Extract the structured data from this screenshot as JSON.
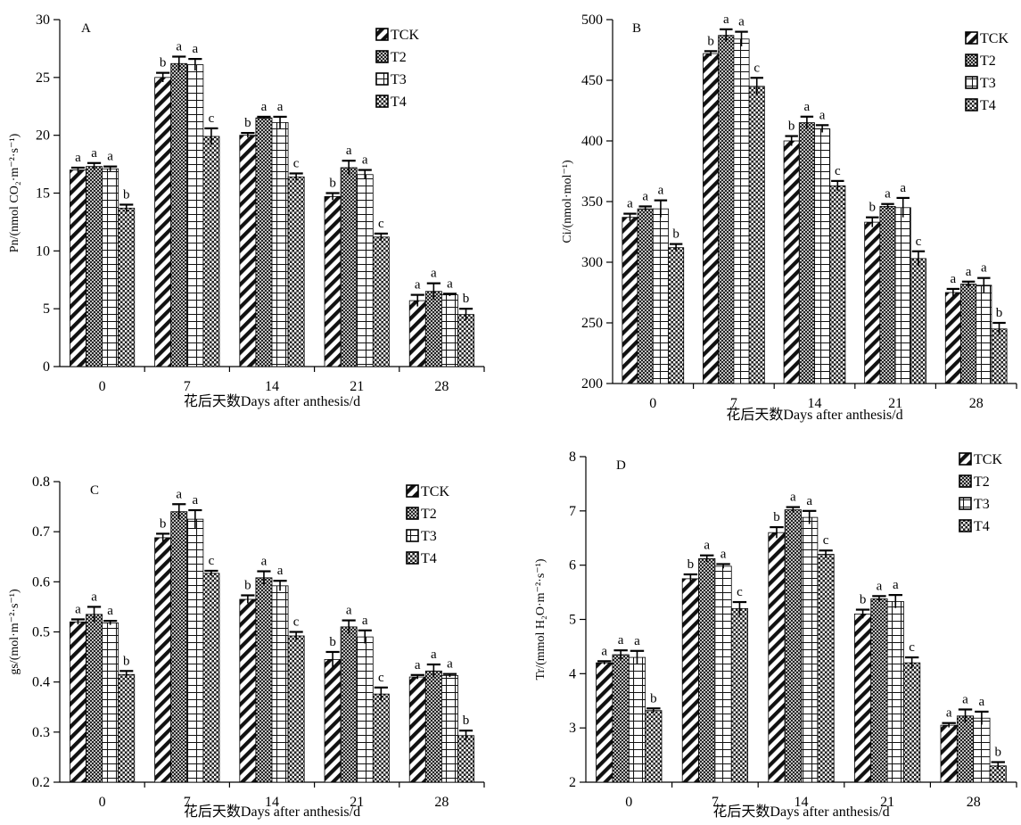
{
  "series_names": [
    "TCK",
    "T2",
    "T3",
    "T4"
  ],
  "chart_data": [
    {
      "type": "bar",
      "panel_letter": "A",
      "ylabel": "Pn/(nmol CO₂·m⁻²·s⁻¹)",
      "xlabel": "花后天数Days after anthesis/d",
      "categories": [
        "0",
        "7",
        "14",
        "21",
        "28"
      ],
      "ylim": [
        0,
        30
      ],
      "yticks": [
        0,
        5,
        10,
        15,
        20,
        25,
        30
      ],
      "legend_position": "top-right",
      "series": [
        {
          "name": "TCK",
          "values": [
            17.0,
            25.0,
            20.0,
            14.7,
            5.7
          ],
          "errors": [
            0.2,
            0.4,
            0.2,
            0.3,
            0.5
          ],
          "letters": [
            "a",
            "b",
            "b",
            "b",
            "a"
          ]
        },
        {
          "name": "T2",
          "values": [
            17.3,
            26.2,
            21.5,
            17.2,
            6.5
          ],
          "errors": [
            0.3,
            0.6,
            0.1,
            0.6,
            0.7
          ],
          "letters": [
            "a",
            "a",
            "a",
            "a",
            "a"
          ]
        },
        {
          "name": "T3",
          "values": [
            17.1,
            26.1,
            21.1,
            16.6,
            6.2
          ],
          "errors": [
            0.2,
            0.5,
            0.5,
            0.4,
            0.1
          ],
          "letters": [
            "a",
            "a",
            "a",
            "a",
            "a"
          ]
        },
        {
          "name": "T4",
          "values": [
            13.7,
            19.9,
            16.4,
            11.2,
            4.5
          ],
          "errors": [
            0.3,
            0.7,
            0.3,
            0.3,
            0.5
          ],
          "letters": [
            "b",
            "c",
            "c",
            "c",
            "b"
          ]
        }
      ]
    },
    {
      "type": "bar",
      "panel_letter": "B",
      "ylabel": "Ci/(nmol·mol⁻¹)",
      "xlabel": "花后天数Days after anthesis/d",
      "categories": [
        "0",
        "7",
        "14",
        "21",
        "28"
      ],
      "ylim": [
        200,
        500
      ],
      "yticks": [
        200,
        250,
        300,
        350,
        400,
        450,
        500
      ],
      "legend_position": "top-right",
      "series": [
        {
          "name": "TCK",
          "values": [
            337,
            472,
            400,
            333,
            275
          ],
          "errors": [
            3,
            2,
            4,
            4,
            3
          ],
          "letters": [
            "a",
            "b",
            "b",
            "b",
            "a"
          ]
        },
        {
          "name": "T2",
          "values": [
            344,
            487,
            415,
            346,
            282
          ],
          "errors": [
            2,
            5,
            5,
            2,
            2
          ],
          "letters": [
            "a",
            "a",
            "a",
            "a",
            "a"
          ]
        },
        {
          "name": "T3",
          "values": [
            344,
            484,
            410,
            345,
            281
          ],
          "errors": [
            7,
            6,
            3,
            8,
            6
          ],
          "letters": [
            "a",
            "a",
            "a",
            "a",
            "a"
          ]
        },
        {
          "name": "T4",
          "values": [
            312,
            445,
            363,
            303,
            245
          ],
          "errors": [
            3,
            7,
            4,
            6,
            5
          ],
          "letters": [
            "b",
            "c",
            "c",
            "c",
            "b"
          ]
        }
      ]
    },
    {
      "type": "bar",
      "panel_letter": "C",
      "ylabel": "gs/(mol·m⁻²·s⁻¹)",
      "xlabel": "花后天数Days after anthesis/d",
      "categories": [
        "0",
        "7",
        "14",
        "21",
        "28"
      ],
      "ylim": [
        0.2,
        0.8
      ],
      "yticks": [
        0.2,
        0.3,
        0.4,
        0.5,
        0.6,
        0.7,
        0.8
      ],
      "legend_position": "top-right",
      "series": [
        {
          "name": "TCK",
          "values": [
            0.52,
            0.688,
            0.565,
            0.445,
            0.41
          ],
          "errors": [
            0.005,
            0.008,
            0.008,
            0.015,
            0.004
          ],
          "letters": [
            "a",
            "b",
            "b",
            "b",
            "a"
          ]
        },
        {
          "name": "T2",
          "values": [
            0.535,
            0.74,
            0.608,
            0.51,
            0.422
          ],
          "errors": [
            0.015,
            0.015,
            0.013,
            0.013,
            0.013
          ],
          "letters": [
            "a",
            "a",
            "a",
            "a",
            "a"
          ]
        },
        {
          "name": "T3",
          "values": [
            0.518,
            0.725,
            0.592,
            0.49,
            0.413
          ],
          "errors": [
            0.004,
            0.018,
            0.01,
            0.013,
            0.003
          ],
          "letters": [
            "a",
            "a",
            "a",
            "a",
            "a"
          ]
        },
        {
          "name": "T4",
          "values": [
            0.415,
            0.617,
            0.492,
            0.376,
            0.293
          ],
          "errors": [
            0.007,
            0.005,
            0.008,
            0.013,
            0.01
          ],
          "letters": [
            "b",
            "c",
            "c",
            "c",
            "b"
          ]
        }
      ]
    },
    {
      "type": "bar",
      "panel_letter": "D",
      "ylabel": "Tr/(mmol H₂O·m⁻²·s⁻¹)",
      "xlabel": "花后天数Days after anthesis/d",
      "categories": [
        "0",
        "7",
        "14",
        "21",
        "28"
      ],
      "ylim": [
        2,
        8
      ],
      "yticks": [
        2,
        3,
        4,
        5,
        6,
        7,
        8
      ],
      "legend_position": "top-right",
      "series": [
        {
          "name": "TCK",
          "values": [
            4.2,
            5.75,
            6.6,
            5.1,
            3.05
          ],
          "errors": [
            0.03,
            0.08,
            0.1,
            0.08,
            0.04
          ],
          "letters": [
            "a",
            "b",
            "b",
            "b",
            "a"
          ]
        },
        {
          "name": "T2",
          "values": [
            4.35,
            6.12,
            7.02,
            5.38,
            3.22
          ],
          "errors": [
            0.08,
            0.06,
            0.05,
            0.05,
            0.12
          ],
          "letters": [
            "a",
            "a",
            "a",
            "a",
            "a"
          ]
        },
        {
          "name": "T3",
          "values": [
            4.3,
            5.98,
            6.88,
            5.33,
            3.18
          ],
          "errors": [
            0.12,
            0.04,
            0.12,
            0.12,
            0.12
          ],
          "letters": [
            "a",
            "a",
            "a",
            "a",
            "a"
          ]
        },
        {
          "name": "T4",
          "values": [
            3.32,
            5.2,
            6.2,
            4.2,
            2.3
          ],
          "errors": [
            0.04,
            0.12,
            0.07,
            0.1,
            0.07
          ],
          "letters": [
            "b",
            "c",
            "c",
            "c",
            "b"
          ]
        }
      ]
    }
  ]
}
